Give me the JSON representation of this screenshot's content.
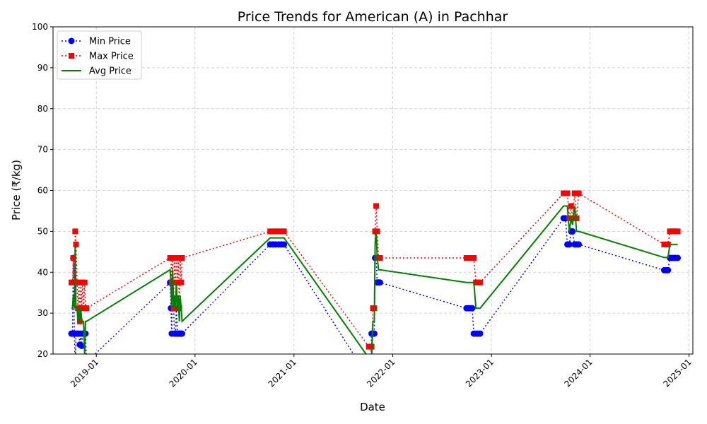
{
  "chart_data": {
    "type": "line",
    "title": "Price Trends for American (A) in Pachhar",
    "xlabel": "Date",
    "ylabel": "Price (₹/kg)",
    "xlim": [
      "2018-07-25",
      "2025-01-15"
    ],
    "ylim": [
      20,
      100
    ],
    "yticks": [
      20,
      30,
      40,
      50,
      60,
      70,
      80,
      90,
      100
    ],
    "xticks": [
      "2019-01",
      "2020-01",
      "2021-01",
      "2022-01",
      "2023-01",
      "2024-01",
      "2025-01"
    ],
    "grid": true,
    "legend_position": "top-left",
    "series": [
      {
        "name": "Min Price",
        "color": "#0000ff",
        "marker": "circle",
        "linestyle": "dotted",
        "x": [
          "2018-10-01",
          "2018-10-05",
          "2018-10-08",
          "2018-10-12",
          "2018-10-15",
          "2018-10-18",
          "2018-10-22",
          "2018-10-25",
          "2018-10-29",
          "2018-11-01",
          "2018-11-05",
          "2018-11-08",
          "2018-11-12",
          "2018-11-15",
          "2018-11-19",
          "2018-11-22",
          "2018-11-26",
          "2019-10-01",
          "2019-10-04",
          "2019-10-07",
          "2019-10-10",
          "2019-10-14",
          "2019-10-17",
          "2019-10-21",
          "2019-10-24",
          "2019-10-28",
          "2019-10-31",
          "2019-11-04",
          "2019-11-07",
          "2019-11-11",
          "2019-11-14",
          "2020-10-05",
          "2020-10-15",
          "2020-10-25",
          "2020-11-05",
          "2020-11-15",
          "2020-11-25",
          "2021-10-05",
          "2021-10-10",
          "2021-10-15",
          "2021-10-20",
          "2021-10-25",
          "2021-10-28",
          "2021-11-01",
          "2021-11-05",
          "2021-11-10",
          "2021-11-15",
          "2022-10-01",
          "2022-10-08",
          "2022-10-15",
          "2022-10-22",
          "2022-10-28",
          "2022-11-05",
          "2022-11-12",
          "2022-11-20",
          "2023-09-25",
          "2023-10-02",
          "2023-10-09",
          "2023-10-16",
          "2023-10-23",
          "2023-10-28",
          "2023-11-05",
          "2023-11-12",
          "2023-11-20",
          "2024-10-01",
          "2024-10-08",
          "2024-10-15",
          "2024-10-22",
          "2024-10-29",
          "2024-11-05",
          "2024-11-12",
          "2024-11-20"
        ],
        "y": [
          25,
          25,
          43.5,
          25,
          17,
          25,
          25,
          25,
          25,
          22.3,
          25,
          22,
          25,
          25,
          25,
          25,
          18,
          37.5,
          31.2,
          25,
          37.5,
          31.2,
          25,
          25,
          31.2,
          25,
          25,
          25,
          25,
          25,
          25,
          46.8,
          46.8,
          46.8,
          46.8,
          46.8,
          46.8,
          14,
          14,
          25,
          25,
          25,
          43.5,
          43.5,
          37.5,
          37.5,
          37.5,
          31.2,
          31.2,
          31.2,
          31.2,
          25,
          25,
          25,
          25,
          53.2,
          53.2,
          46.8,
          46.8,
          50,
          50,
          46.8,
          46.8,
          46.8,
          40.5,
          40.5,
          40.5,
          43.5,
          43.5,
          43.5,
          43.5,
          43.5
        ]
      },
      {
        "name": "Max Price",
        "color": "#ff0000",
        "marker": "square",
        "linestyle": "dotted",
        "x": [
          "2018-10-01",
          "2018-10-05",
          "2018-10-08",
          "2018-10-12",
          "2018-10-15",
          "2018-10-18",
          "2018-10-22",
          "2018-10-25",
          "2018-10-29",
          "2018-11-01",
          "2018-11-05",
          "2018-11-08",
          "2018-11-12",
          "2018-11-15",
          "2018-11-19",
          "2018-11-22",
          "2018-11-26",
          "2019-10-01",
          "2019-10-04",
          "2019-10-07",
          "2019-10-10",
          "2019-10-14",
          "2019-10-17",
          "2019-10-21",
          "2019-10-24",
          "2019-10-28",
          "2019-10-31",
          "2019-11-04",
          "2019-11-07",
          "2019-11-11",
          "2019-11-14",
          "2020-10-05",
          "2020-10-15",
          "2020-10-25",
          "2020-11-05",
          "2020-11-15",
          "2020-11-25",
          "2021-10-05",
          "2021-10-10",
          "2021-10-15",
          "2021-10-20",
          "2021-10-25",
          "2021-10-28",
          "2021-11-01",
          "2021-11-05",
          "2021-11-10",
          "2021-11-15",
          "2022-10-01",
          "2022-10-08",
          "2022-10-15",
          "2022-10-22",
          "2022-10-28",
          "2022-11-05",
          "2022-11-12",
          "2022-11-20",
          "2023-09-25",
          "2023-10-02",
          "2023-10-09",
          "2023-10-16",
          "2023-10-23",
          "2023-10-28",
          "2023-11-05",
          "2023-11-12",
          "2023-11-20",
          "2024-10-01",
          "2024-10-08",
          "2024-10-15",
          "2024-10-22",
          "2024-10-29",
          "2024-11-05",
          "2024-11-12",
          "2024-11-20"
        ],
        "y": [
          37.5,
          37.5,
          43.5,
          37.5,
          50,
          46.8,
          37.5,
          31.2,
          37.5,
          28,
          37.5,
          31.2,
          37.5,
          31.2,
          37.5,
          31.2,
          31.2,
          43.5,
          43.5,
          37.5,
          43.5,
          31.2,
          43.5,
          37.5,
          43.5,
          37.5,
          43.5,
          31.2,
          43.5,
          37.5,
          43.5,
          50,
          50,
          50,
          50,
          50,
          50,
          21.8,
          21.8,
          21.8,
          31.2,
          31.2,
          50,
          56.2,
          50,
          43.5,
          43.5,
          43.5,
          43.5,
          43.5,
          43.5,
          43.5,
          37.5,
          37.5,
          37.5,
          59.3,
          59.3,
          59.3,
          53.2,
          56.2,
          53.2,
          59.3,
          53.2,
          59.3,
          46.8,
          46.8,
          46.8,
          50,
          50,
          50,
          50,
          50
        ]
      },
      {
        "name": "Avg Price",
        "color": "#008000",
        "marker": "none",
        "linestyle": "solid",
        "x": [
          "2018-10-01",
          "2018-10-05",
          "2018-10-08",
          "2018-10-12",
          "2018-10-15",
          "2018-10-18",
          "2018-10-22",
          "2018-10-25",
          "2018-10-29",
          "2018-11-01",
          "2018-11-05",
          "2018-11-08",
          "2018-11-12",
          "2018-11-15",
          "2018-11-19",
          "2018-11-22",
          "2018-11-26",
          "2019-10-01",
          "2019-10-04",
          "2019-10-07",
          "2019-10-10",
          "2019-10-14",
          "2019-10-17",
          "2019-10-21",
          "2019-10-24",
          "2019-10-28",
          "2019-10-31",
          "2019-11-04",
          "2019-11-07",
          "2019-11-11",
          "2019-11-14",
          "2020-10-05",
          "2020-10-15",
          "2020-10-25",
          "2020-11-05",
          "2020-11-15",
          "2020-11-25",
          "2021-10-05",
          "2021-10-10",
          "2021-10-15",
          "2021-10-20",
          "2021-10-25",
          "2021-10-28",
          "2021-11-01",
          "2021-11-05",
          "2021-11-10",
          "2021-11-15",
          "2022-10-01",
          "2022-10-08",
          "2022-10-15",
          "2022-10-22",
          "2022-10-28",
          "2022-11-05",
          "2022-11-12",
          "2022-11-20",
          "2023-09-25",
          "2023-10-02",
          "2023-10-09",
          "2023-10-16",
          "2023-10-23",
          "2023-10-28",
          "2023-11-05",
          "2023-11-12",
          "2023-11-20",
          "2024-10-01",
          "2024-10-08",
          "2024-10-15",
          "2024-10-22",
          "2024-10-29",
          "2024-11-05",
          "2024-11-12",
          "2024-11-20"
        ],
        "y": [
          31.2,
          31.2,
          34.3,
          31.2,
          46.5,
          31.2,
          31.2,
          28,
          31.2,
          28,
          31.2,
          28,
          28,
          28,
          20,
          28,
          28,
          40.6,
          37.5,
          31.2,
          40.6,
          31.2,
          34.3,
          31.2,
          37.5,
          31.2,
          34.3,
          28,
          34.3,
          31.2,
          28,
          48.4,
          48.4,
          48.4,
          48.4,
          48.4,
          48.4,
          19,
          19,
          19,
          28,
          28,
          46.8,
          50,
          43.5,
          40.6,
          40.6,
          37.5,
          37.5,
          37.5,
          37.5,
          37.5,
          31.2,
          31.2,
          31.2,
          56.2,
          56.2,
          56.2,
          50,
          53.2,
          51.6,
          56.2,
          50,
          50,
          43.6,
          43.6,
          43.6,
          46.8,
          46.8,
          46.8,
          46.8,
          46.8
        ]
      }
    ]
  }
}
